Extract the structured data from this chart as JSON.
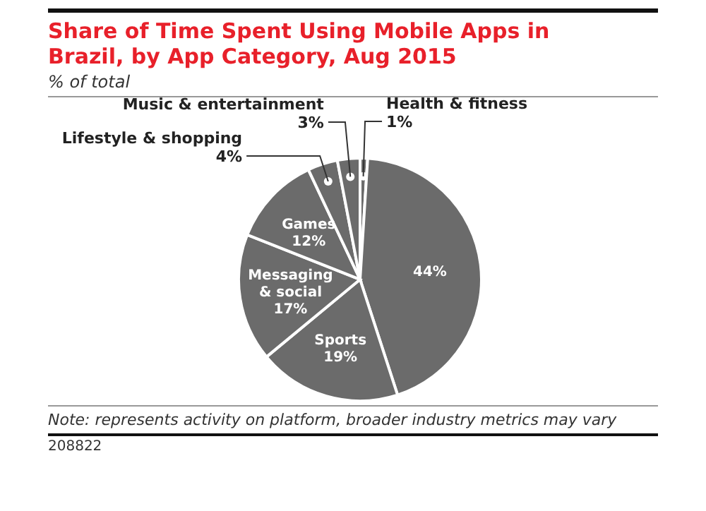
{
  "chart_data": {
    "type": "pie",
    "title": "Share of Time Spent Using Mobile Apps in Brazil, by App Category, Aug 2015",
    "subtitle": "% of total",
    "categories": [
      "Health & fitness",
      null,
      "Sports",
      "Messaging & social",
      "Games",
      "Lifestyle & shopping",
      "Music & entertainment"
    ],
    "values": [
      1,
      44,
      19,
      17,
      12,
      4,
      3
    ],
    "value_labels": [
      "1%",
      "44%",
      "19%",
      "17%",
      "12%",
      "4%",
      "3%"
    ],
    "colors": [
      "#6b6b6b",
      "#6b6b6b",
      "#6b6b6b",
      "#6b6b6b",
      "#6b6b6b",
      "#6b6b6b",
      "#6b6b6b"
    ],
    "legend": false,
    "annotations": [
      "Note: represents activity on platform, broader industry metrics may vary",
      "208822"
    ]
  }
}
